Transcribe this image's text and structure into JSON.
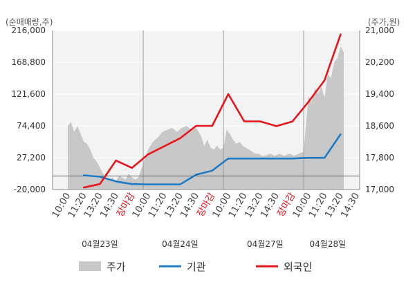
{
  "chart_data": {
    "type": "area+line",
    "left_unit": "(순매매량,주)",
    "right_unit": "(주가,원)",
    "left_ticks": [
      "216,000",
      "168,800",
      "121,600",
      "74,400",
      "27,200",
      "-20,000"
    ],
    "right_ticks": [
      "21,000",
      "20,200",
      "19,400",
      "18,600",
      "17,800",
      "17,000"
    ],
    "left_ylim": [
      -20000,
      216000
    ],
    "right_ylim": [
      17000,
      21000
    ],
    "x_labels": [
      {
        "text": "10:00",
        "pos": 0,
        "red": false
      },
      {
        "text": "11:20",
        "pos": 1,
        "red": false
      },
      {
        "text": "13:20",
        "pos": 2,
        "red": false
      },
      {
        "text": "14:30",
        "pos": 3,
        "red": false
      },
      {
        "text": "장마감",
        "pos": 4,
        "red": true
      },
      {
        "text": "10:00",
        "pos": 5,
        "red": false
      },
      {
        "text": "11:20",
        "pos": 6,
        "red": false
      },
      {
        "text": "13:20",
        "pos": 7,
        "red": false
      },
      {
        "text": "14:30",
        "pos": 8,
        "red": false
      },
      {
        "text": "장마감",
        "pos": 9,
        "red": true
      },
      {
        "text": "10:00",
        "pos": 10,
        "red": false
      },
      {
        "text": "11:20",
        "pos": 11,
        "red": false
      },
      {
        "text": "13:20",
        "pos": 12,
        "red": false
      },
      {
        "text": "14:30",
        "pos": 13,
        "red": false
      },
      {
        "text": "장마감",
        "pos": 14,
        "red": true
      },
      {
        "text": "10:00",
        "pos": 15,
        "red": false
      },
      {
        "text": "11:20",
        "pos": 16,
        "red": false
      },
      {
        "text": "13:20",
        "pos": 17,
        "red": false
      },
      {
        "text": "14:30",
        "pos": 18,
        "red": false
      }
    ],
    "dates": [
      {
        "text": "04월23일",
        "pos": 2
      },
      {
        "text": "04월24일",
        "pos": 7
      },
      {
        "text": "04월27일",
        "pos": 12.3
      },
      {
        "text": "04월28일",
        "pos": 16.2
      }
    ],
    "day_separators": [
      4.7,
      9.7,
      14.7
    ],
    "series": [
      {
        "name": "주가",
        "axis": "right",
        "color": "#c8c8c8",
        "kind": "area",
        "x": [
          0,
          0.2,
          0.4,
          0.6,
          0.8,
          1.0,
          1.2,
          1.4,
          1.6,
          1.8,
          2.0,
          2.2,
          2.4,
          2.6,
          2.8,
          3.0,
          3.2,
          3.4,
          3.6,
          3.8,
          4.0,
          4.2,
          4.4,
          4.7,
          5.0,
          5.3,
          5.6,
          5.9,
          6.2,
          6.5,
          6.8,
          7.1,
          7.4,
          7.7,
          8.0,
          8.3,
          8.5,
          8.7,
          8.9,
          9.1,
          9.3,
          9.5,
          9.7,
          9.9,
          10.1,
          10.3,
          10.5,
          10.7,
          10.9,
          11.1,
          11.3,
          11.5,
          11.7,
          11.9,
          12.1,
          12.3,
          12.6,
          12.9,
          13.2,
          13.5,
          13.8,
          14.1,
          14.4,
          14.7,
          15.0,
          15.2,
          15.4,
          15.6,
          15.8,
          16.0,
          16.2,
          16.4,
          16.6,
          16.8,
          17.0,
          17.2
        ],
        "values": [
          18600,
          18700,
          18450,
          18600,
          18400,
          18200,
          18150,
          18000,
          17800,
          17700,
          17550,
          17400,
          17300,
          17250,
          17300,
          17200,
          17350,
          17300,
          17250,
          17400,
          17300,
          17250,
          17300,
          17650,
          18000,
          18200,
          18300,
          18450,
          18500,
          18550,
          18450,
          18550,
          18600,
          18500,
          18550,
          18350,
          18100,
          18250,
          18050,
          18000,
          18100,
          18000,
          18050,
          18500,
          18400,
          18250,
          18150,
          18200,
          18100,
          18050,
          18000,
          17950,
          17900,
          17900,
          17850,
          17850,
          17900,
          17850,
          17900,
          17850,
          17900,
          17850,
          17900,
          17950,
          19350,
          19200,
          19550,
          19400,
          19600,
          19300,
          19900,
          19800,
          20200,
          20300,
          20600,
          20450
        ]
      },
      {
        "name": "기관",
        "axis": "left",
        "color": "#1f7ac4",
        "kind": "line",
        "x": [
          1,
          2,
          3,
          4,
          5,
          6,
          7,
          8,
          9,
          10,
          11,
          12,
          13,
          14,
          15,
          16,
          17
        ],
        "values": [
          1000,
          -1000,
          -8000,
          -12000,
          -12500,
          -12500,
          -12500,
          2000,
          8000,
          26000,
          26000,
          26000,
          26000,
          26000,
          27000,
          27000,
          62000
        ]
      },
      {
        "name": "외국인",
        "axis": "left",
        "color": "#e8141c",
        "kind": "line",
        "x": [
          1,
          2,
          3,
          4,
          5,
          6,
          7,
          8,
          9,
          10,
          11,
          12,
          13,
          14,
          15,
          16,
          17
        ],
        "values": [
          -17000,
          -12000,
          23000,
          12000,
          32000,
          44000,
          56000,
          74400,
          74400,
          121600,
          81000,
          81000,
          74000,
          81000,
          110000,
          142000,
          210000
        ]
      }
    ],
    "legend": [
      {
        "name": "주가",
        "kind": "area",
        "color": "#c8c8c8"
      },
      {
        "name": "기관",
        "kind": "line",
        "color": "#1f7ac4"
      },
      {
        "name": "외국인",
        "kind": "line",
        "color": "#e8141c"
      }
    ],
    "legend_position": "bottom",
    "grid": true
  }
}
